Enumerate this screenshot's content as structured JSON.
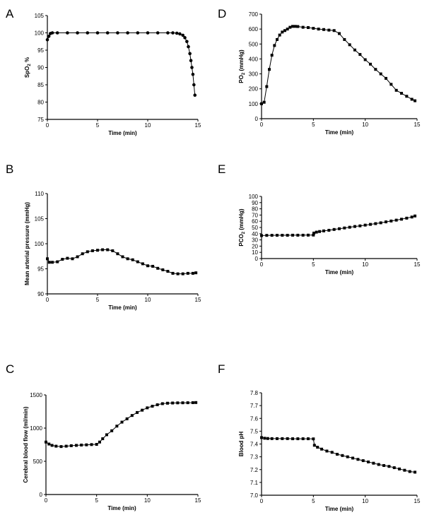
{
  "chart_data": [
    {
      "panel": "A",
      "type": "line",
      "xlabel": "Time (min)",
      "ylabel": "SpO",
      "ylabel_sub": "2",
      "ylabel_suffix": " %",
      "xlim": [
        0,
        15
      ],
      "ylim": [
        75,
        105
      ],
      "xticks": [
        0,
        5,
        10,
        15
      ],
      "yticks": [
        75,
        80,
        85,
        90,
        95,
        100,
        105
      ],
      "marker": "circle",
      "series": [
        {
          "x": [
            0,
            0.15,
            0.3,
            0.5,
            1,
            2,
            3,
            4,
            5,
            6,
            7,
            8,
            9,
            10,
            11,
            12,
            12.5,
            12.9,
            13.2,
            13.5,
            13.7,
            13.9,
            14.05,
            14.2,
            14.3,
            14.4,
            14.5,
            14.6,
            14.7
          ],
          "y": [
            98,
            99,
            99.8,
            100,
            100,
            100,
            100,
            100,
            100,
            100,
            100,
            100,
            100,
            100,
            100,
            100,
            100,
            99.9,
            99.7,
            99.3,
            98.6,
            97.5,
            96,
            94,
            92,
            90,
            88,
            85,
            82
          ]
        }
      ]
    },
    {
      "panel": "B",
      "type": "line",
      "xlabel": "Time (min)",
      "ylabel": "Mean arterial pressure (mmHg)",
      "xlim": [
        0,
        15
      ],
      "ylim": [
        90,
        110
      ],
      "xticks": [
        0,
        5,
        10,
        15
      ],
      "yticks": [
        90,
        95,
        100,
        105,
        110
      ],
      "marker": "square",
      "series": [
        {
          "x": [
            0,
            0.2,
            0.5,
            1,
            1.5,
            2,
            2.5,
            3,
            3.5,
            4,
            4.5,
            5,
            5.5,
            6,
            6.5,
            7,
            7.5,
            8,
            8.5,
            9,
            9.5,
            10,
            10.5,
            11,
            11.5,
            12,
            12.5,
            13,
            13.5,
            14,
            14.5,
            14.8
          ],
          "y": [
            97,
            96.3,
            96.3,
            96.4,
            96.9,
            97.1,
            97.0,
            97.4,
            98.0,
            98.4,
            98.6,
            98.7,
            98.8,
            98.8,
            98.6,
            98.0,
            97.4,
            97.0,
            96.8,
            96.4,
            96.0,
            95.6,
            95.5,
            95.1,
            94.8,
            94.5,
            94.1,
            94.0,
            94.0,
            94.1,
            94.1,
            94.2
          ]
        }
      ]
    },
    {
      "panel": "C",
      "type": "line",
      "xlabel": "Time (min)",
      "ylabel": "Cerebral blood flow (ml/min)",
      "xlim": [
        0,
        15
      ],
      "ylim": [
        0,
        1500
      ],
      "xticks": [
        0,
        5,
        10,
        15
      ],
      "yticks": [
        0,
        500,
        1000,
        1500
      ],
      "marker": "square",
      "series": [
        {
          "x": [
            0,
            0.3,
            0.6,
            1,
            1.5,
            2,
            2.5,
            3,
            3.5,
            4,
            4.5,
            5,
            5.3,
            5.6,
            6,
            6.5,
            7,
            7.5,
            8,
            8.5,
            9,
            9.5,
            10,
            10.5,
            11,
            11.5,
            12,
            12.5,
            13,
            13.5,
            14,
            14.5,
            14.8
          ],
          "y": [
            790,
            760,
            740,
            728,
            722,
            728,
            735,
            740,
            745,
            748,
            752,
            755,
            790,
            840,
            900,
            960,
            1030,
            1090,
            1140,
            1190,
            1235,
            1270,
            1305,
            1330,
            1352,
            1368,
            1375,
            1378,
            1380,
            1381,
            1382,
            1383,
            1385
          ]
        }
      ]
    },
    {
      "panel": "D",
      "type": "line",
      "xlabel": "Time (min)",
      "ylabel": "PO",
      "ylabel_sub": "2",
      "ylabel_suffix": " (mmHg)",
      "xlim": [
        0,
        15
      ],
      "ylim": [
        0,
        700
      ],
      "xticks": [
        0,
        5,
        10,
        15
      ],
      "yticks": [
        0,
        100,
        200,
        300,
        400,
        500,
        600,
        700
      ],
      "marker": "square",
      "series": [
        {
          "x": [
            0,
            0.25,
            0.5,
            0.75,
            1,
            1.25,
            1.5,
            1.75,
            2,
            2.25,
            2.5,
            2.75,
            3,
            3.25,
            3.5,
            4,
            4.5,
            5,
            5.5,
            6,
            6.5,
            7,
            7.5,
            8,
            8.5,
            9,
            9.5,
            10,
            10.5,
            11,
            11.5,
            12,
            12.5,
            13,
            13.5,
            14,
            14.5,
            14.8
          ],
          "y": [
            100,
            110,
            215,
            330,
            425,
            490,
            530,
            560,
            580,
            590,
            600,
            612,
            618,
            618,
            617,
            612,
            610,
            605,
            600,
            597,
            593,
            590,
            570,
            530,
            495,
            460,
            430,
            395,
            365,
            330,
            300,
            270,
            230,
            190,
            170,
            150,
            130,
            120
          ]
        }
      ]
    },
    {
      "panel": "E",
      "type": "line",
      "xlabel": "Time (min)",
      "ylabel": "PCO",
      "ylabel_sub": "2",
      "ylabel_suffix": " (mmHg)",
      "xlim": [
        0,
        15
      ],
      "ylim": [
        0,
        100
      ],
      "xticks": [
        0,
        5,
        10,
        15
      ],
      "yticks": [
        0,
        10,
        20,
        30,
        40,
        50,
        60,
        70,
        80,
        90,
        100
      ],
      "marker": "square",
      "series": [
        {
          "x": [
            0,
            0.5,
            1,
            1.5,
            2,
            2.5,
            3,
            3.5,
            4,
            4.5,
            5,
            5.05,
            5.3,
            5.6,
            6,
            6.5,
            7,
            7.5,
            8,
            8.5,
            9,
            9.5,
            10,
            10.5,
            11,
            11.5,
            12,
            12.5,
            13,
            13.5,
            14,
            14.5,
            14.8
          ],
          "y": [
            37,
            37.3,
            37.4,
            37.5,
            37.5,
            37.5,
            37.6,
            37.6,
            37.6,
            37.7,
            37.8,
            41,
            42.5,
            43.5,
            44.5,
            45.5,
            46.8,
            48,
            49.2,
            50.4,
            51.6,
            52.6,
            53.8,
            55,
            56.2,
            57.5,
            59,
            60.4,
            61.8,
            63.3,
            65,
            66.8,
            68.5
          ]
        }
      ]
    },
    {
      "panel": "F",
      "type": "line",
      "xlabel": "Time (min)",
      "ylabel": "Blood pH",
      "xlim": [
        0,
        15
      ],
      "ylim": [
        7.0,
        7.8
      ],
      "xticks": [
        0,
        5,
        10,
        15
      ],
      "yticks": [
        7.0,
        7.1,
        7.2,
        7.3,
        7.4,
        7.5,
        7.6,
        7.7,
        7.8
      ],
      "ytick_decimals": 1,
      "marker": "square",
      "series": [
        {
          "x": [
            0,
            0.3,
            0.6,
            1,
            1.5,
            2,
            2.5,
            3,
            3.5,
            4,
            4.5,
            5,
            5.1,
            5.4,
            5.8,
            6.3,
            6.8,
            7.3,
            7.8,
            8.3,
            8.8,
            9.3,
            9.8,
            10.3,
            10.8,
            11.3,
            11.8,
            12.3,
            12.8,
            13.3,
            13.8,
            14.3,
            14.8
          ],
          "y": [
            7.45,
            7.445,
            7.443,
            7.442,
            7.442,
            7.442,
            7.442,
            7.441,
            7.441,
            7.441,
            7.441,
            7.44,
            7.39,
            7.375,
            7.36,
            7.345,
            7.335,
            7.32,
            7.31,
            7.3,
            7.29,
            7.28,
            7.27,
            7.26,
            7.25,
            7.24,
            7.232,
            7.225,
            7.215,
            7.205,
            7.195,
            7.185,
            7.18
          ]
        }
      ]
    }
  ]
}
